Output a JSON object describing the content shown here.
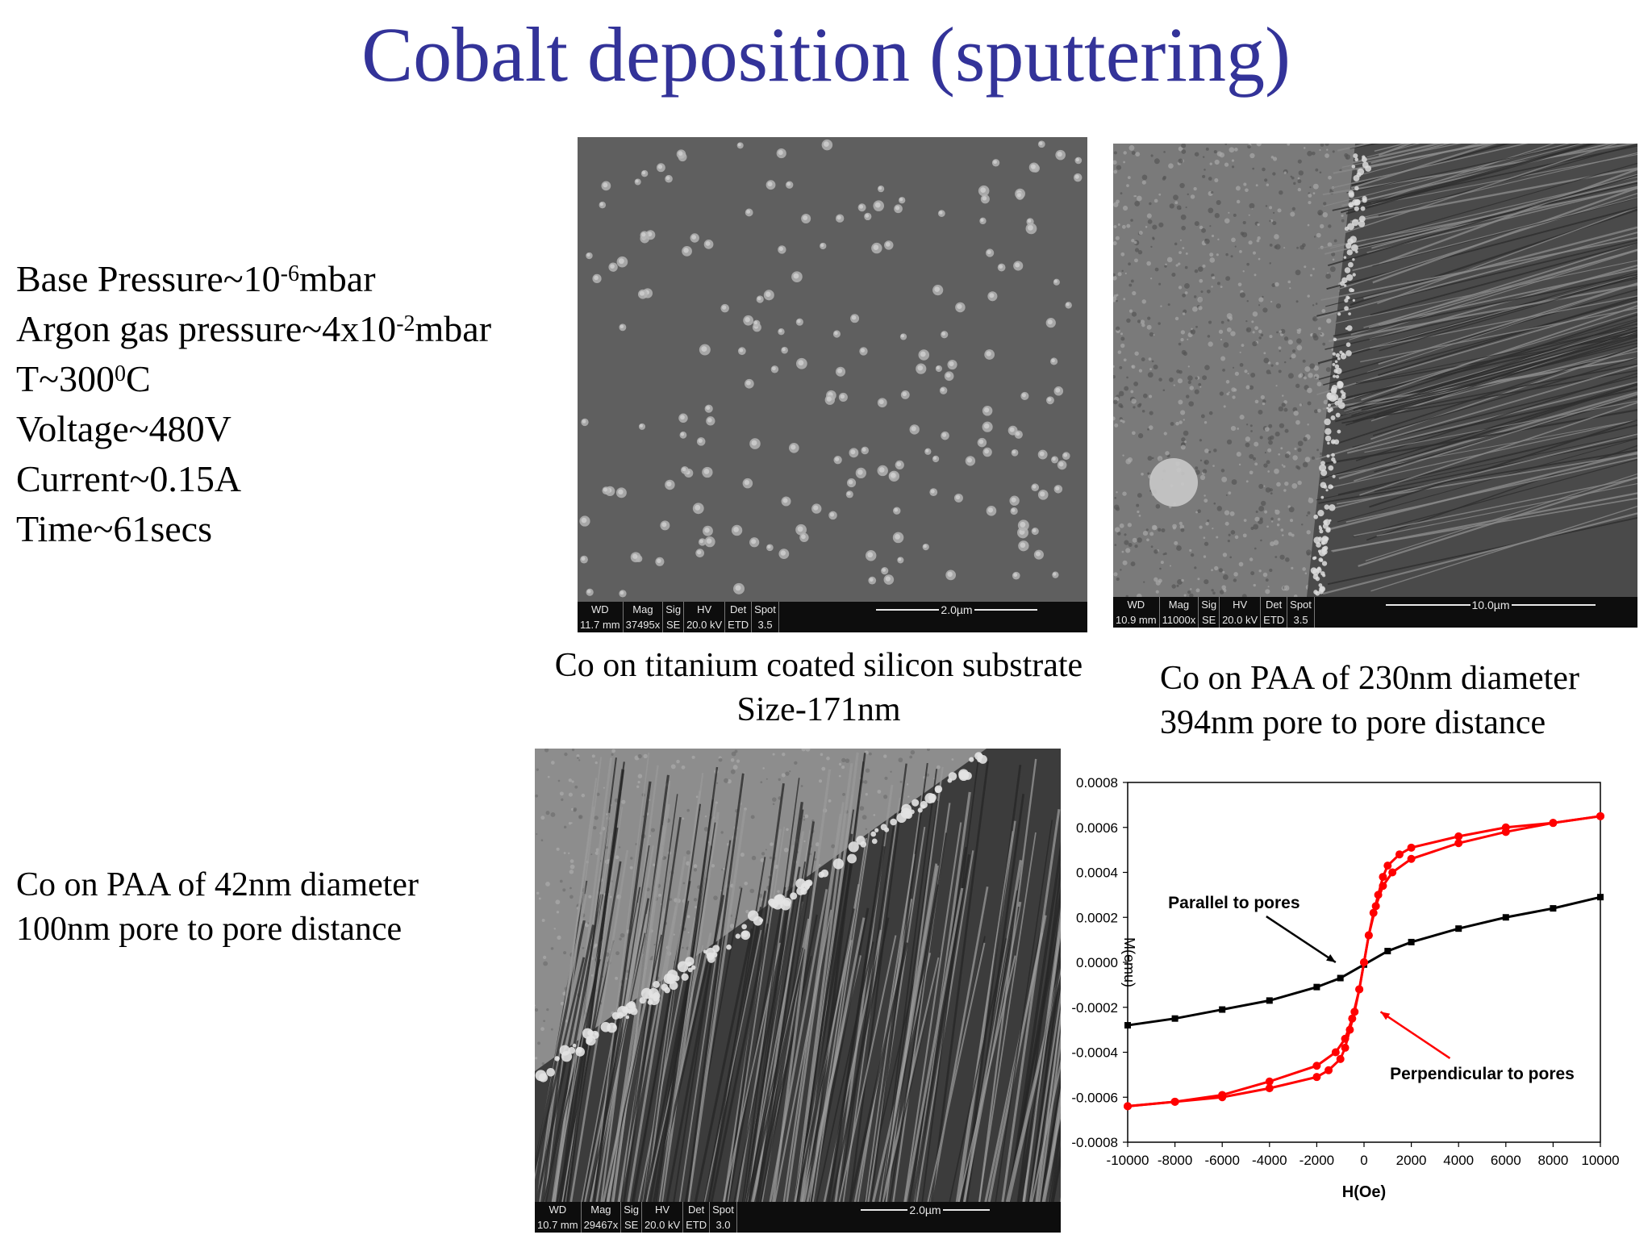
{
  "title": "Cobalt deposition (sputtering)",
  "parameters": [
    {
      "prefix": "Base Pressure~10",
      "sup": "-6",
      "suffix": "mbar"
    },
    {
      "prefix": "Argon gas pressure~4x10",
      "sup": "-2",
      "suffix": "mbar"
    },
    {
      "prefix": "T~300",
      "sup": "0",
      "suffix": "C"
    },
    {
      "prefix": "Voltage~480V",
      "sup": "",
      "suffix": ""
    },
    {
      "prefix": "Current~0.15A",
      "sup": "",
      "suffix": ""
    },
    {
      "prefix": "Time~61secs",
      "sup": "",
      "suffix": ""
    }
  ],
  "captions": {
    "ti_substrate": {
      "line1": "Co on titanium coated silicon substrate",
      "line2": "Size-171nm"
    },
    "paa_230": {
      "line1": "Co on PAA of  230nm diameter",
      "line2": "394nm pore to pore distance"
    },
    "paa_42": {
      "line1": "Co on PAA of  42nm diameter",
      "line2": "100nm pore to pore distance"
    }
  },
  "sem_images": {
    "ti_substrate": {
      "headers": [
        "WD",
        "Mag",
        "Sig",
        "HV",
        "Det",
        "Spot"
      ],
      "values": [
        "11.7 mm",
        "37495x",
        "SE",
        "20.0 kV",
        "ETD",
        "3.5"
      ],
      "scale": "2.0µm"
    },
    "paa_230": {
      "headers": [
        "WD",
        "Mag",
        "Sig",
        "HV",
        "Det",
        "Spot"
      ],
      "values": [
        "10.9 mm",
        "11000x",
        "SE",
        "20.0 kV",
        "ETD",
        "3.5"
      ],
      "scale": "10.0µm"
    },
    "paa_42": {
      "headers": [
        "WD",
        "Mag",
        "Sig",
        "HV",
        "Det",
        "Spot"
      ],
      "values": [
        "10.7 mm",
        "29467x",
        "SE",
        "20.0 kV",
        "ETD",
        "3.0"
      ],
      "scale": "2.0µm"
    }
  },
  "chart_data": {
    "type": "scatter",
    "title": "",
    "xlabel": "H(Oe)",
    "ylabel": "M(emu)",
    "xlim": [
      -10000,
      10000
    ],
    "ylim": [
      -0.0008,
      0.0008
    ],
    "xticks": [
      -10000,
      -8000,
      -6000,
      -4000,
      -2000,
      0,
      2000,
      4000,
      6000,
      8000,
      10000
    ],
    "yticks": [
      0.0008,
      0.0006,
      0.0004,
      0.0002,
      0.0,
      -0.0002,
      -0.0004,
      -0.0006,
      -0.0008
    ],
    "xtick_labels": [
      "-10000",
      "-8000",
      "-6000",
      "-4000",
      "-2000",
      "0",
      "2000",
      "4000",
      "6000",
      "8000",
      "10000"
    ],
    "ytick_labels": [
      "0.0008",
      "0.0006",
      "0.0004",
      "0.0002",
      "0.0000",
      "-0.0002",
      "-0.0004",
      "-0.0006",
      "-0.0008"
    ],
    "series": [
      {
        "color": "#000000",
        "marker": "square",
        "x": [
          -10000,
          -8000,
          -6000,
          -4000,
          -2000,
          -1000,
          0,
          1000,
          2000,
          4000,
          6000,
          8000,
          10000
        ],
        "y": [
          -0.00028,
          -0.00025,
          -0.00021,
          -0.00017,
          -0.00011,
          -7e-05,
          -1e-05,
          5e-05,
          9e-05,
          0.00015,
          0.0002,
          0.00024,
          0.00029
        ]
      },
      {
        "color": "#ff0000",
        "marker": "circle",
        "branch": "descending",
        "x": [
          10000,
          8000,
          6000,
          4000,
          2000,
          1200,
          800,
          500,
          200,
          0,
          -200,
          -400,
          -600,
          -800,
          -1000,
          -1500,
          -2000,
          -4000,
          -6000,
          -8000,
          -10000
        ],
        "y": [
          0.00065,
          0.00062,
          0.00058,
          0.00053,
          0.00046,
          0.0004,
          0.00034,
          0.00025,
          0.00012,
          0.0,
          -0.00012,
          -0.00022,
          -0.0003,
          -0.00038,
          -0.00043,
          -0.00048,
          -0.00051,
          -0.00056,
          -0.0006,
          -0.00062,
          -0.00064
        ]
      },
      {
        "color": "#ff0000",
        "marker": "circle",
        "branch": "ascending",
        "x": [
          -10000,
          -8000,
          -6000,
          -4000,
          -2000,
          -1200,
          -800,
          -500,
          -200,
          0,
          200,
          400,
          600,
          800,
          1000,
          1500,
          2000,
          4000,
          6000,
          8000,
          10000
        ],
        "y": [
          -0.00064,
          -0.00062,
          -0.00059,
          -0.00053,
          -0.00046,
          -0.0004,
          -0.00034,
          -0.00025,
          -0.00012,
          0.0,
          0.00012,
          0.00022,
          0.0003,
          0.00038,
          0.00043,
          0.00048,
          0.00051,
          0.00056,
          0.0006,
          0.00062,
          0.00065
        ]
      }
    ],
    "annotations": [
      {
        "text": "Parallel to pores",
        "x": -5500,
        "y": 0.00024,
        "arrow_to": [
          -1200,
          0.0
        ]
      },
      {
        "text": "Perpendicular to pores",
        "x": 5000,
        "y": -0.00052,
        "arrow_to": [
          700,
          -0.00022
        ]
      }
    ]
  }
}
